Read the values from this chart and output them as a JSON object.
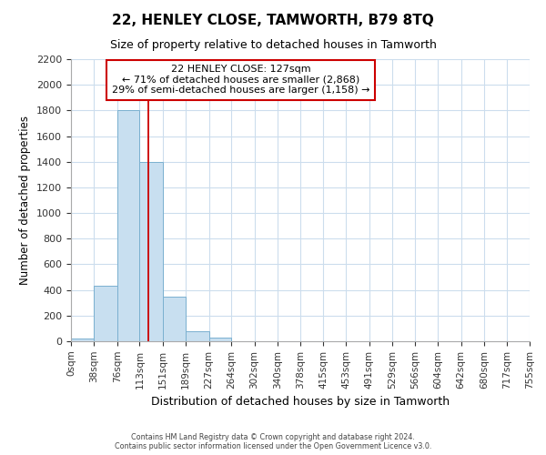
{
  "title": "22, HENLEY CLOSE, TAMWORTH, B79 8TQ",
  "subtitle": "Size of property relative to detached houses in Tamworth",
  "xlabel": "Distribution of detached houses by size in Tamworth",
  "ylabel": "Number of detached properties",
  "bar_edges": [
    0,
    38,
    76,
    113,
    151,
    189,
    227,
    264,
    302,
    340,
    378,
    415,
    453,
    491,
    529,
    566,
    604,
    642,
    680,
    717,
    755
  ],
  "bar_heights": [
    20,
    430,
    1800,
    1400,
    350,
    75,
    25,
    0,
    0,
    0,
    0,
    0,
    0,
    0,
    0,
    0,
    0,
    0,
    0,
    0
  ],
  "bar_color": "#c8dff0",
  "bar_edge_color": "#7ab0d0",
  "tick_labels": [
    "0sqm",
    "38sqm",
    "76sqm",
    "113sqm",
    "151sqm",
    "189sqm",
    "227sqm",
    "264sqm",
    "302sqm",
    "340sqm",
    "378sqm",
    "415sqm",
    "453sqm",
    "491sqm",
    "529sqm",
    "566sqm",
    "604sqm",
    "642sqm",
    "680sqm",
    "717sqm",
    "755sqm"
  ],
  "property_line_x": 127,
  "property_line_color": "#cc0000",
  "annotation_title": "22 HENLEY CLOSE: 127sqm",
  "annotation_line1": "← 71% of detached houses are smaller (2,868)",
  "annotation_line2": "29% of semi-detached houses are larger (1,158) →",
  "annotation_box_color": "#ffffff",
  "annotation_box_edge": "#cc0000",
  "ylim": [
    0,
    2200
  ],
  "yticks": [
    0,
    200,
    400,
    600,
    800,
    1000,
    1200,
    1400,
    1600,
    1800,
    2000,
    2200
  ],
  "footer_line1": "Contains HM Land Registry data © Crown copyright and database right 2024.",
  "footer_line2": "Contains public sector information licensed under the Open Government Licence v3.0.",
  "grid_color": "#ccdded",
  "background_color": "#ffffff"
}
